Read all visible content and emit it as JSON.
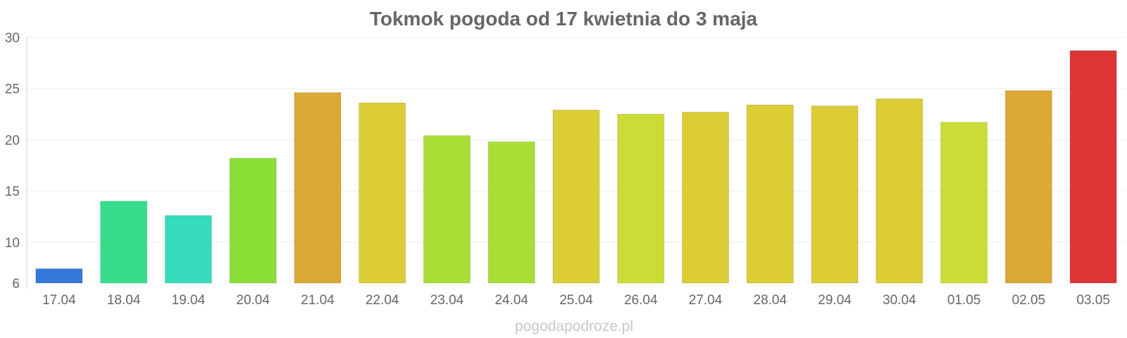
{
  "chart_data": {
    "type": "bar",
    "title": "Tokmok pogoda od 17 kwietnia do 3 maja",
    "xlabel": "",
    "ylabel": "",
    "categories": [
      "17.04",
      "18.04",
      "19.04",
      "20.04",
      "21.04",
      "22.04",
      "23.04",
      "24.04",
      "25.04",
      "26.04",
      "27.04",
      "28.04",
      "29.04",
      "30.04",
      "01.05",
      "02.05",
      "03.05"
    ],
    "values": [
      7.4,
      14.0,
      12.6,
      18.2,
      24.6,
      23.6,
      20.4,
      19.8,
      22.9,
      22.5,
      22.7,
      23.4,
      23.3,
      24.0,
      21.7,
      24.8,
      28.7
    ],
    "colors": [
      "#3478dc",
      "#36dc8a",
      "#36dcbc",
      "#8ade36",
      "#dca836",
      "#dccc36",
      "#aade36",
      "#aade36",
      "#dccc36",
      "#ccdc36",
      "#dccc36",
      "#dccc36",
      "#dccc36",
      "#dccc36",
      "#ccdc36",
      "#dca836",
      "#dc3636"
    ],
    "ylim": [
      6,
      30
    ],
    "yticks": [
      6,
      10,
      15,
      20,
      25,
      30
    ],
    "grid": true,
    "legend": "none",
    "watermark": "pogodapodroze.pl"
  }
}
